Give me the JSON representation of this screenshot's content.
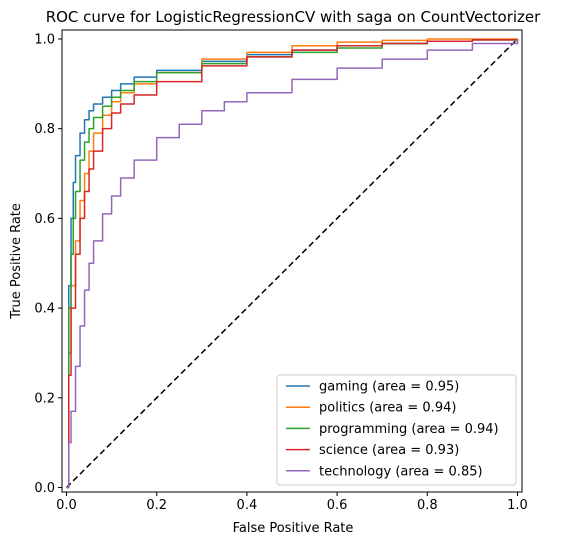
{
  "chart_data": {
    "type": "line",
    "title": "ROC curve for LogisticRegressionCV with saga on CountVectorizer",
    "xlabel": "False Positive Rate",
    "ylabel": "True Positive Rate",
    "xlim": [
      -0.01,
      1.01
    ],
    "ylim": [
      -0.01,
      1.02
    ],
    "x_ticks": [
      "0.0",
      "0.2",
      "0.4",
      "0.6",
      "0.8",
      "1.0"
    ],
    "y_ticks": [
      "0.0",
      "0.2",
      "0.4",
      "0.6",
      "0.8",
      "1.0"
    ],
    "grid": false,
    "legend_position": "lower-right",
    "series": [
      {
        "name": "gaming (area = 0.95)",
        "color": "#1f77b4",
        "x": [
          0,
          0.005,
          0.01,
          0.015,
          0.02,
          0.03,
          0.04,
          0.05,
          0.06,
          0.08,
          0.1,
          0.12,
          0.15,
          0.2,
          0.3,
          0.4,
          0.5,
          0.6,
          0.7,
          0.8,
          0.9,
          1.0
        ],
        "y": [
          0,
          0.45,
          0.6,
          0.68,
          0.74,
          0.79,
          0.82,
          0.84,
          0.855,
          0.87,
          0.885,
          0.9,
          0.915,
          0.93,
          0.95,
          0.965,
          0.975,
          0.985,
          0.99,
          0.995,
          0.998,
          1.0
        ]
      },
      {
        "name": "politics (area = 0.94)",
        "color": "#ff7f0e",
        "x": [
          0,
          0.005,
          0.01,
          0.02,
          0.03,
          0.04,
          0.05,
          0.06,
          0.08,
          0.1,
          0.12,
          0.15,
          0.2,
          0.3,
          0.4,
          0.5,
          0.6,
          0.7,
          0.8,
          0.9,
          1.0
        ],
        "y": [
          0,
          0.3,
          0.45,
          0.55,
          0.64,
          0.7,
          0.75,
          0.79,
          0.83,
          0.86,
          0.88,
          0.9,
          0.925,
          0.955,
          0.97,
          0.985,
          0.993,
          0.997,
          1.0,
          1.0,
          1.0
        ]
      },
      {
        "name": "programming (area = 0.94)",
        "color": "#2ca02c",
        "x": [
          0,
          0.005,
          0.01,
          0.015,
          0.02,
          0.03,
          0.04,
          0.05,
          0.06,
          0.08,
          0.1,
          0.12,
          0.15,
          0.2,
          0.3,
          0.4,
          0.5,
          0.6,
          0.7,
          0.8,
          0.9,
          1.0
        ],
        "y": [
          0,
          0.4,
          0.52,
          0.6,
          0.66,
          0.73,
          0.77,
          0.8,
          0.825,
          0.85,
          0.87,
          0.885,
          0.905,
          0.925,
          0.945,
          0.96,
          0.97,
          0.98,
          0.99,
          0.995,
          0.998,
          1.0
        ]
      },
      {
        "name": "science (area = 0.93)",
        "color": "#d62728",
        "x": [
          0,
          0.005,
          0.01,
          0.02,
          0.03,
          0.04,
          0.05,
          0.06,
          0.08,
          0.1,
          0.12,
          0.15,
          0.2,
          0.3,
          0.4,
          0.5,
          0.6,
          0.7,
          0.8,
          0.9,
          1.0
        ],
        "y": [
          0,
          0.25,
          0.4,
          0.52,
          0.6,
          0.66,
          0.71,
          0.75,
          0.8,
          0.835,
          0.855,
          0.875,
          0.905,
          0.94,
          0.96,
          0.975,
          0.985,
          0.99,
          0.995,
          0.998,
          1.0
        ]
      },
      {
        "name": "technology (area = 0.85)",
        "color": "#9467bd",
        "x": [
          0,
          0.005,
          0.01,
          0.02,
          0.03,
          0.04,
          0.05,
          0.06,
          0.08,
          0.1,
          0.12,
          0.15,
          0.2,
          0.25,
          0.3,
          0.35,
          0.4,
          0.5,
          0.6,
          0.7,
          0.8,
          0.9,
          1.0
        ],
        "y": [
          0,
          0.1,
          0.17,
          0.27,
          0.36,
          0.44,
          0.5,
          0.55,
          0.61,
          0.65,
          0.69,
          0.73,
          0.78,
          0.81,
          0.84,
          0.86,
          0.88,
          0.91,
          0.935,
          0.955,
          0.975,
          0.99,
          1.0
        ]
      }
    ],
    "diagonal": {
      "color": "#000000",
      "style": "dashed",
      "x": [
        0,
        1
      ],
      "y": [
        0,
        1
      ]
    }
  }
}
